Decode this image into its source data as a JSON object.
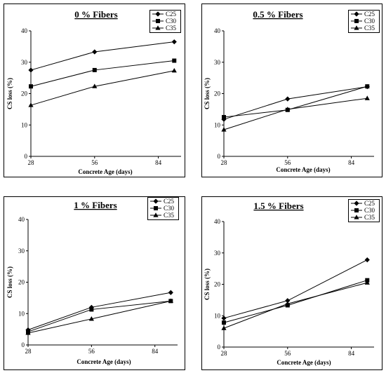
{
  "chart_data": [
    {
      "type": "line",
      "title": "0 % Fibers",
      "xlabel": "Concrete Age (days)",
      "ylabel": "CS loss (%)",
      "x": [
        28,
        56,
        91
      ],
      "xticks": [
        28,
        56,
        84
      ],
      "ylim": [
        0,
        40
      ],
      "yticks": [
        0,
        10,
        20,
        30,
        40
      ],
      "legend_position": "top-right",
      "series": [
        {
          "name": "C25",
          "marker": "diamond",
          "values": [
            27.5,
            33.3,
            36.5
          ]
        },
        {
          "name": "C30",
          "marker": "square",
          "values": [
            22.3,
            27.5,
            30.5
          ]
        },
        {
          "name": "C35",
          "marker": "triangle",
          "values": [
            16.3,
            22.3,
            27.3
          ]
        }
      ]
    },
    {
      "type": "line",
      "title": "0.5 % Fibers",
      "xlabel": "Concrete Age (days)",
      "ylabel": "CS loss (%)",
      "x": [
        28,
        56,
        91
      ],
      "xticks": [
        28,
        56,
        84
      ],
      "ylim": [
        0,
        40
      ],
      "yticks": [
        0,
        10,
        20,
        30,
        40
      ],
      "legend_position": "top-right",
      "series": [
        {
          "name": "C25",
          "marker": "diamond",
          "values": [
            11.8,
            18.3,
            22.2
          ]
        },
        {
          "name": "C30",
          "marker": "square",
          "values": [
            12.5,
            14.8,
            22.3
          ]
        },
        {
          "name": "C35",
          "marker": "triangle",
          "values": [
            8.5,
            15.0,
            18.5
          ]
        }
      ]
    },
    {
      "type": "line",
      "title": "1 % Fibers",
      "xlabel": "Concrete Age (days)",
      "ylabel": "CS loss (%)",
      "x": [
        28,
        56,
        91
      ],
      "xticks": [
        28,
        56,
        84
      ],
      "ylim": [
        0,
        40
      ],
      "yticks": [
        0,
        10,
        20,
        30,
        40
      ],
      "legend_position": "top-right",
      "series": [
        {
          "name": "C25",
          "marker": "diamond",
          "values": [
            4.8,
            12.0,
            16.7
          ]
        },
        {
          "name": "C30",
          "marker": "square",
          "values": [
            4.2,
            11.3,
            14.0
          ]
        },
        {
          "name": "C35",
          "marker": "triangle",
          "values": [
            3.8,
            8.3,
            14.0
          ]
        }
      ]
    },
    {
      "type": "line",
      "title": "1.5 % Fibers",
      "xlabel": "Concrete Age (days)",
      "ylabel": "CS loss (%)",
      "x": [
        28,
        56,
        91
      ],
      "xticks": [
        28,
        56,
        84
      ],
      "ylim": [
        0,
        40
      ],
      "yticks": [
        0,
        10,
        20,
        30,
        40
      ],
      "legend_position": "top-right",
      "series": [
        {
          "name": "C25",
          "marker": "diamond",
          "values": [
            9.2,
            14.8,
            27.8
          ]
        },
        {
          "name": "C30",
          "marker": "square",
          "values": [
            7.8,
            13.3,
            21.3
          ]
        },
        {
          "name": "C35",
          "marker": "triangle",
          "values": [
            6.0,
            13.8,
            20.5
          ]
        }
      ]
    }
  ]
}
